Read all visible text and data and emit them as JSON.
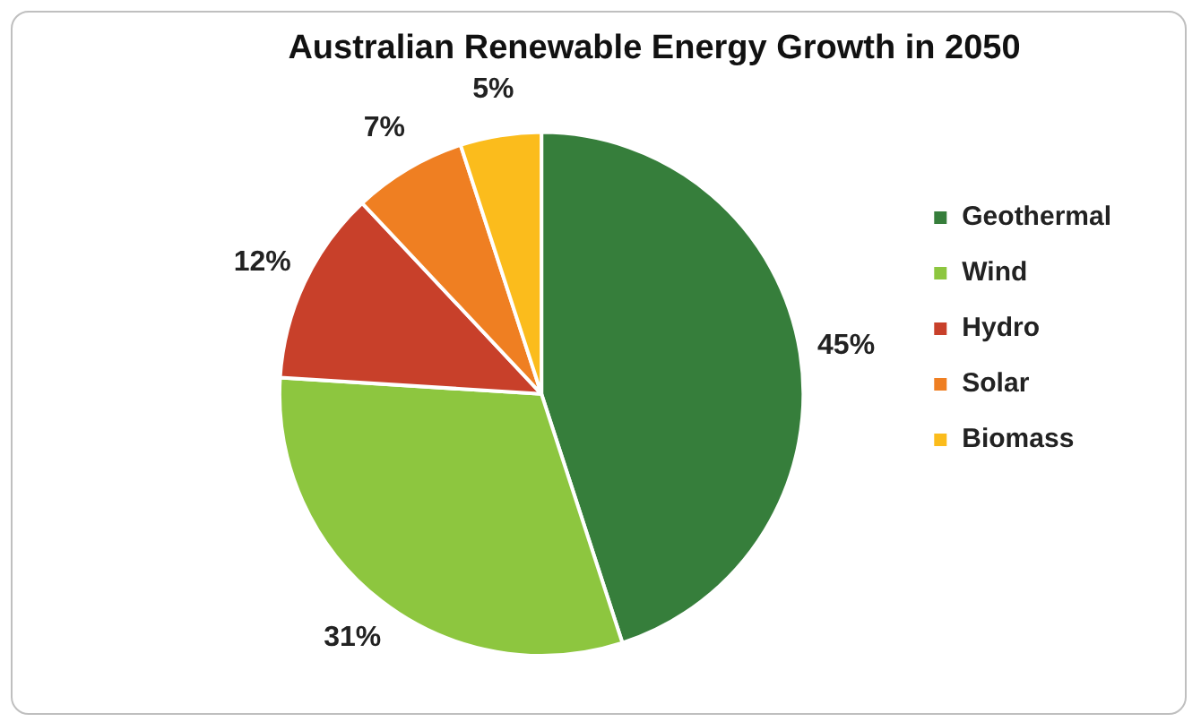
{
  "chart_data": {
    "type": "pie",
    "title": "Australian Renewable Energy Growth in 2050",
    "categories": [
      "Geothermal",
      "Wind",
      "Hydro",
      "Solar",
      "Biomass"
    ],
    "values": [
      45,
      31,
      12,
      7,
      5
    ],
    "colors": [
      "#367e3b",
      "#8dc63f",
      "#c8402a",
      "#ef7f22",
      "#fbbc1c"
    ],
    "value_labels": [
      "45%",
      "31%",
      "12%",
      "7%",
      "5%"
    ],
    "legend": "right"
  }
}
